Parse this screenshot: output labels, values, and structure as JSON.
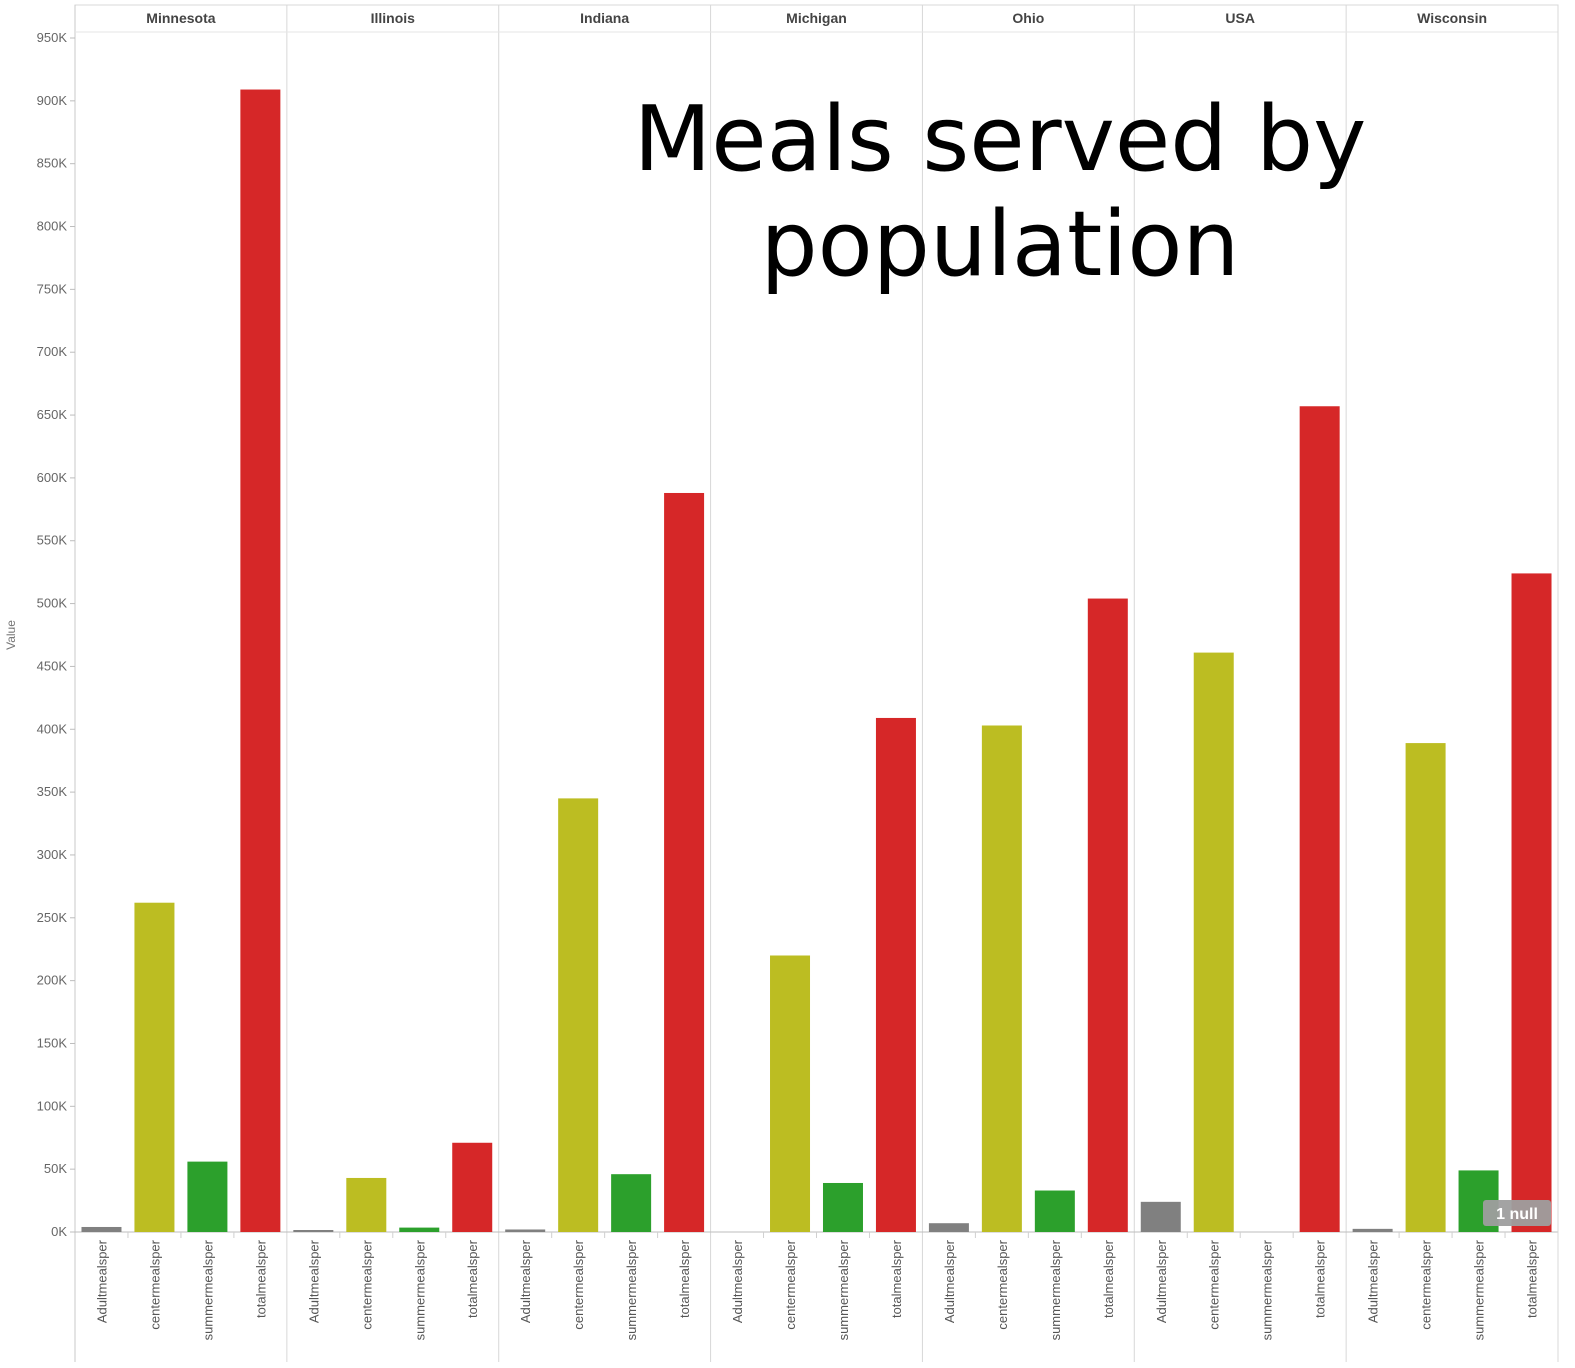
{
  "chart_data": {
    "type": "bar",
    "title": "Meals served by population",
    "ylabel": "Value",
    "ylim": [
      0,
      950000
    ],
    "yticks": [
      0,
      50000,
      100000,
      150000,
      200000,
      250000,
      300000,
      350000,
      400000,
      450000,
      500000,
      550000,
      600000,
      650000,
      700000,
      750000,
      800000,
      850000,
      900000,
      950000
    ],
    "ytick_labels": [
      "0K",
      "50K",
      "100K",
      "150K",
      "200K",
      "250K",
      "300K",
      "350K",
      "400K",
      "450K",
      "500K",
      "550K",
      "600K",
      "650K",
      "700K",
      "750K",
      "800K",
      "850K",
      "900K",
      "950K"
    ],
    "categories": [
      "Adultmealsper",
      "centermealsper",
      "summermealsper",
      "totalmealsper"
    ],
    "colors": {
      "Adultmealsper": "#808080",
      "centermealsper": "#bcbd22",
      "summermealsper": "#2ca02c",
      "totalmealsper": "#d62728"
    },
    "panels": [
      {
        "name": "Minnesota",
        "values": [
          4000,
          262000,
          56000,
          909000
        ]
      },
      {
        "name": "Illinois",
        "values": [
          1000,
          43000,
          3500,
          71000
        ]
      },
      {
        "name": "Indiana",
        "values": [
          2000,
          345000,
          46000,
          588000
        ]
      },
      {
        "name": "Michigan",
        "values": [
          null,
          220000,
          39000,
          409000
        ]
      },
      {
        "name": "Ohio",
        "values": [
          7000,
          403000,
          33000,
          504000
        ]
      },
      {
        "name": "USA",
        "values": [
          24000,
          461000,
          null,
          657000
        ]
      },
      {
        "name": "Wisconsin",
        "values": [
          2500,
          389000,
          49000,
          524000
        ]
      }
    ],
    "null_indicator": "1 null",
    "grid": false,
    "legend": "none"
  }
}
